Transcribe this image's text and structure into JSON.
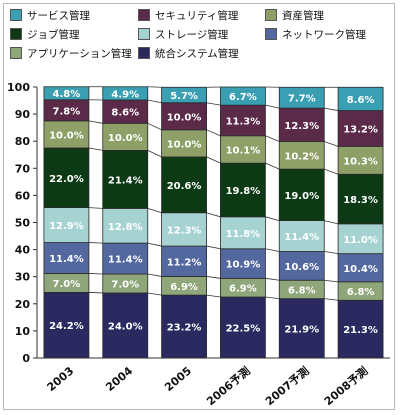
{
  "chart_data": {
    "type": "bar",
    "stacked": true,
    "categories": [
      "2003",
      "2004",
      "2005",
      "2006予測",
      "2007予測",
      "2008予測"
    ],
    "ylim": [
      0,
      100
    ],
    "yticks": [
      0,
      10,
      20,
      30,
      40,
      50,
      60,
      70,
      80,
      90,
      100
    ],
    "legend_position": "top",
    "grid": false,
    "series": [
      {
        "name": "統合システム管理",
        "color": "#2a2a60",
        "values": [
          24.2,
          24.0,
          23.2,
          22.5,
          21.9,
          21.3
        ],
        "labels": [
          "24.2%",
          "24.0%",
          "23.2%",
          "22.5%",
          "21.9%",
          "21.3%"
        ]
      },
      {
        "name": "アプリケーション管理",
        "color": "#8ea67a",
        "values": [
          7.0,
          7.0,
          6.9,
          6.9,
          6.8,
          6.8
        ],
        "labels": [
          "7.0%",
          "7.0%",
          "6.9%",
          "6.9%",
          "6.8%",
          "6.8%"
        ]
      },
      {
        "name": "ネットワーク管理",
        "color": "#5468a0",
        "values": [
          11.4,
          11.4,
          11.2,
          10.9,
          10.6,
          10.4
        ],
        "labels": [
          "11.4%",
          "11.4%",
          "11.2%",
          "10.9%",
          "10.6%",
          "10.4%"
        ]
      },
      {
        "name": "ストレージ管理",
        "color": "#a6d2d2",
        "values": [
          12.9,
          12.8,
          12.3,
          11.8,
          11.4,
          11.0
        ],
        "labels": [
          "12.9%",
          "12.8%",
          "12.3%",
          "11.8%",
          "11.4%",
          "11.0%"
        ]
      },
      {
        "name": "ジョブ管理",
        "color": "#0b3a14",
        "values": [
          22.0,
          21.4,
          20.6,
          19.8,
          19.0,
          18.3
        ],
        "labels": [
          "22.0%",
          "21.4%",
          "20.6%",
          "19.8%",
          "19.0%",
          "18.3%"
        ]
      },
      {
        "name": "資産管理",
        "color": "#8ea067",
        "values": [
          10.0,
          10.0,
          10.0,
          10.1,
          10.2,
          10.3
        ],
        "labels": [
          "10.0%",
          "10.0%",
          "10.0%",
          "10.1%",
          "10.2%",
          "10.3%"
        ]
      },
      {
        "name": "セキュリティ管理",
        "color": "#5a2a48",
        "values": [
          7.8,
          8.6,
          10.0,
          11.3,
          12.3,
          13.2
        ],
        "labels": [
          "7.8%",
          "8.6%",
          "10.0%",
          "11.3%",
          "12.3%",
          "13.2%"
        ]
      },
      {
        "name": "サービス管理",
        "color": "#3a9fb2",
        "values": [
          4.8,
          4.9,
          5.7,
          6.7,
          7.7,
          8.6
        ],
        "labels": [
          "4.8%",
          "4.9%",
          "5.7%",
          "6.7%",
          "7.7%",
          "8.6%"
        ]
      }
    ],
    "legend_order": [
      "サービス管理",
      "セキュリティ管理",
      "資産管理",
      "ジョブ管理",
      "ストレージ管理",
      "ネットワーク管理",
      "アプリケーション管理",
      "統合システム管理"
    ]
  }
}
